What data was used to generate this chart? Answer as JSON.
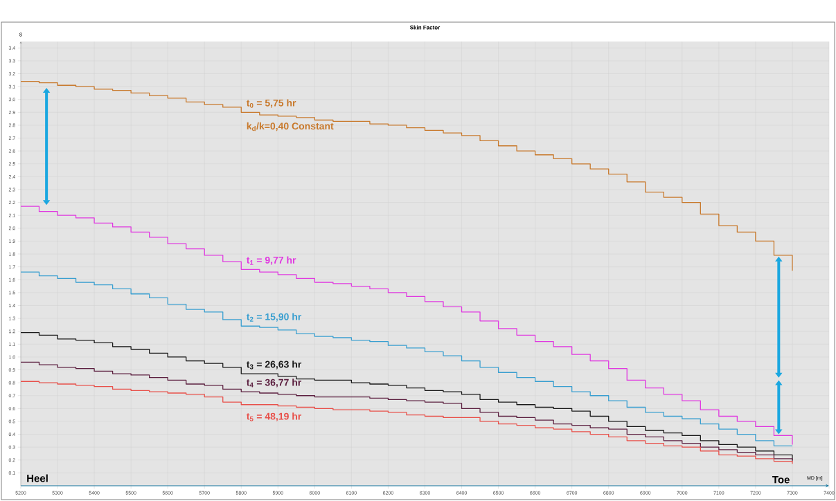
{
  "chart_data": {
    "type": "step",
    "title": "Skin Factor",
    "xlabel": "MD [m]",
    "ylabel": "S",
    "x": [
      5200,
      5250,
      5300,
      5350,
      5400,
      5450,
      5500,
      5550,
      5600,
      5650,
      5700,
      5750,
      5800,
      5850,
      5900,
      5950,
      6000,
      6050,
      6100,
      6150,
      6200,
      6250,
      6300,
      6350,
      6400,
      6450,
      6500,
      6550,
      6600,
      6650,
      6700,
      6750,
      6800,
      6850,
      6900,
      6950,
      7000,
      7050,
      7100,
      7150,
      7200,
      7250,
      7300
    ],
    "series": [
      {
        "name": "t$_{0}$ = 5,75 hr",
        "color": "#c8792c",
        "values": [
          3.14,
          3.13,
          3.11,
          3.1,
          3.08,
          3.07,
          3.05,
          3.03,
          3.01,
          2.98,
          2.96,
          2.94,
          2.9,
          2.88,
          2.87,
          2.86,
          2.84,
          2.83,
          2.83,
          2.81,
          2.8,
          2.78,
          2.76,
          2.74,
          2.72,
          2.68,
          2.64,
          2.6,
          2.57,
          2.54,
          2.5,
          2.46,
          2.42,
          2.36,
          2.28,
          2.24,
          2.2,
          2.11,
          2.02,
          1.97,
          1.9,
          1.79,
          1.67
        ]
      },
      {
        "name": "t$_{1}$ = 9,77 hr",
        "color": "#e03ae0",
        "values": [
          2.17,
          2.13,
          2.1,
          2.08,
          2.04,
          2.01,
          1.97,
          1.93,
          1.88,
          1.84,
          1.79,
          1.74,
          1.68,
          1.66,
          1.64,
          1.61,
          1.58,
          1.57,
          1.55,
          1.53,
          1.5,
          1.47,
          1.43,
          1.39,
          1.35,
          1.28,
          1.22,
          1.17,
          1.12,
          1.08,
          1.02,
          0.97,
          0.91,
          0.82,
          0.76,
          0.71,
          0.66,
          0.59,
          0.54,
          0.5,
          0.46,
          0.39,
          0.32
        ]
      },
      {
        "name": "t$_{2}$ = 15,90 hr",
        "color": "#3a9fd0",
        "values": [
          1.66,
          1.63,
          1.61,
          1.58,
          1.56,
          1.53,
          1.49,
          1.46,
          1.41,
          1.37,
          1.35,
          1.29,
          1.24,
          1.23,
          1.21,
          1.18,
          1.16,
          1.15,
          1.13,
          1.12,
          1.09,
          1.07,
          1.04,
          1.01,
          0.97,
          0.92,
          0.88,
          0.84,
          0.81,
          0.77,
          0.73,
          0.7,
          0.66,
          0.61,
          0.57,
          0.54,
          0.52,
          0.48,
          0.44,
          0.4,
          0.35,
          0.31,
          0.31
        ]
      },
      {
        "name": "t$_{3}$ = 26,63 hr",
        "color": "#1a1a1a",
        "values": [
          1.19,
          1.17,
          1.14,
          1.13,
          1.11,
          1.08,
          1.06,
          1.03,
          1.0,
          0.97,
          0.95,
          0.92,
          0.87,
          0.87,
          0.85,
          0.83,
          0.82,
          0.82,
          0.8,
          0.79,
          0.78,
          0.76,
          0.74,
          0.73,
          0.71,
          0.67,
          0.65,
          0.63,
          0.61,
          0.6,
          0.58,
          0.54,
          0.5,
          0.46,
          0.43,
          0.41,
          0.39,
          0.35,
          0.32,
          0.3,
          0.27,
          0.24,
          0.2
        ]
      },
      {
        "name": "t$_{4}$ = 36,77 hr",
        "color": "#5c2040",
        "values": [
          0.96,
          0.94,
          0.92,
          0.91,
          0.89,
          0.87,
          0.86,
          0.84,
          0.82,
          0.79,
          0.78,
          0.75,
          0.73,
          0.72,
          0.71,
          0.7,
          0.69,
          0.69,
          0.69,
          0.68,
          0.67,
          0.66,
          0.65,
          0.64,
          0.6,
          0.57,
          0.54,
          0.53,
          0.51,
          0.48,
          0.47,
          0.45,
          0.44,
          0.4,
          0.38,
          0.35,
          0.33,
          0.3,
          0.28,
          0.26,
          0.24,
          0.21,
          0.19
        ]
      },
      {
        "name": "t$_{5}$ = 48,19 hr",
        "color": "#e8504a",
        "values": [
          0.81,
          0.8,
          0.79,
          0.78,
          0.77,
          0.75,
          0.74,
          0.73,
          0.72,
          0.71,
          0.69,
          0.65,
          0.63,
          0.63,
          0.62,
          0.61,
          0.6,
          0.59,
          0.59,
          0.58,
          0.57,
          0.55,
          0.54,
          0.53,
          0.53,
          0.5,
          0.48,
          0.47,
          0.45,
          0.44,
          0.42,
          0.4,
          0.38,
          0.35,
          0.33,
          0.31,
          0.3,
          0.27,
          0.24,
          0.23,
          0.21,
          0.19,
          0.17
        ]
      }
    ],
    "annotations": [
      "k$_{d}$/k=0,40 Constant",
      "Heel",
      "Toe"
    ],
    "xlim": [
      5200,
      7400
    ],
    "ylim": [
      0,
      3.45
    ],
    "xticks": [
      5200,
      5300,
      5400,
      5500,
      5600,
      5700,
      5800,
      5900,
      6000,
      6100,
      6200,
      6300,
      6400,
      6500,
      6600,
      6700,
      6800,
      6900,
      7000,
      7100,
      7200,
      7300,
      7400
    ],
    "yticks": [
      0.1,
      0.2,
      0.3,
      0.4,
      0.5,
      0.6,
      0.7,
      0.8,
      0.9,
      {
        "value": 1,
        "label": "1.0"
      },
      1.1,
      1.2,
      1.3,
      1.4,
      1.5,
      1.6,
      1.7,
      1.8,
      1.9,
      {
        "value": 2,
        "label": "2.0"
      },
      2.1,
      2.2,
      2.3,
      2.4,
      2.5,
      2.6,
      2.7,
      2.8,
      2.9,
      {
        "value": 3,
        "label": "3.0"
      },
      3.1,
      3.2,
      3.3,
      3.4
    ],
    "grid": true
  }
}
